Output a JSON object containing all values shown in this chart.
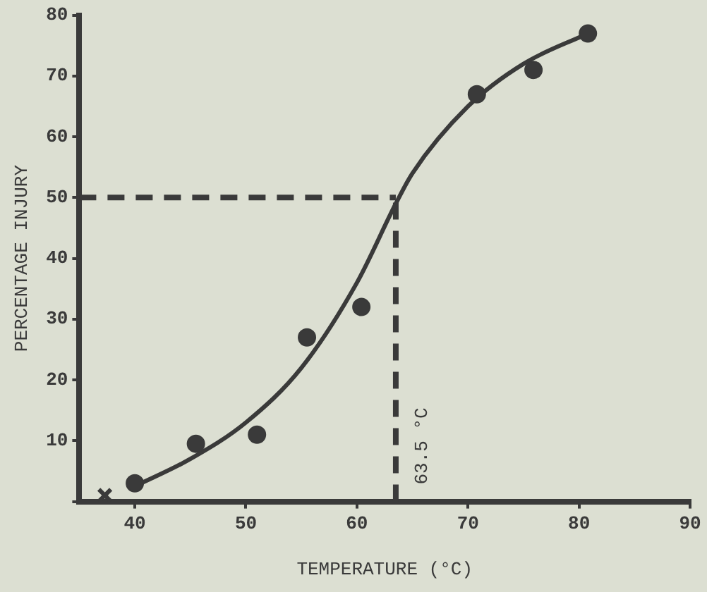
{
  "chart_data": {
    "type": "scatter",
    "xlabel": "TEMPERATURE (°C)",
    "ylabel": "PERCENTAGE INJURY",
    "xlim": [
      35,
      90
    ],
    "xticks": [
      40,
      50,
      60,
      70,
      80,
      90
    ],
    "ylim": [
      0,
      80
    ],
    "yticks": [
      {
        "value": 0,
        "label": null
      },
      10,
      20,
      30,
      40,
      50,
      60,
      70,
      80
    ],
    "grid": false,
    "legend": false,
    "series": [
      {
        "color": "#3a3a3a",
        "marker": "circle",
        "x": [
          40,
          45.5,
          51,
          55.5,
          60.4,
          70.8,
          75.9,
          80.8
        ],
        "values": [
          3,
          9.5,
          11,
          27,
          32,
          67,
          71,
          77
        ]
      },
      {
        "color": "#3a3a3a",
        "marker": "cross",
        "x": [
          37.3
        ],
        "values": [
          1
        ]
      },
      {
        "type": "line",
        "color": "#3a3a3a",
        "marker": "none",
        "line_style": "solid",
        "x": [
          40,
          45,
          50,
          55,
          60,
          63.5,
          65,
          70,
          75,
          80.8
        ],
        "values": [
          2.5,
          7,
          13,
          22,
          36,
          49,
          54,
          65,
          72,
          77
        ]
      }
    ],
    "ref_lines": [
      {
        "axis": "y",
        "value": 50,
        "line_style": "dashed",
        "color": "#3a3a3a"
      },
      {
        "axis": "x",
        "value": 63.5,
        "label": "63.5 °C",
        "line_style": "dashed",
        "color": "#3a3a3a"
      }
    ]
  }
}
